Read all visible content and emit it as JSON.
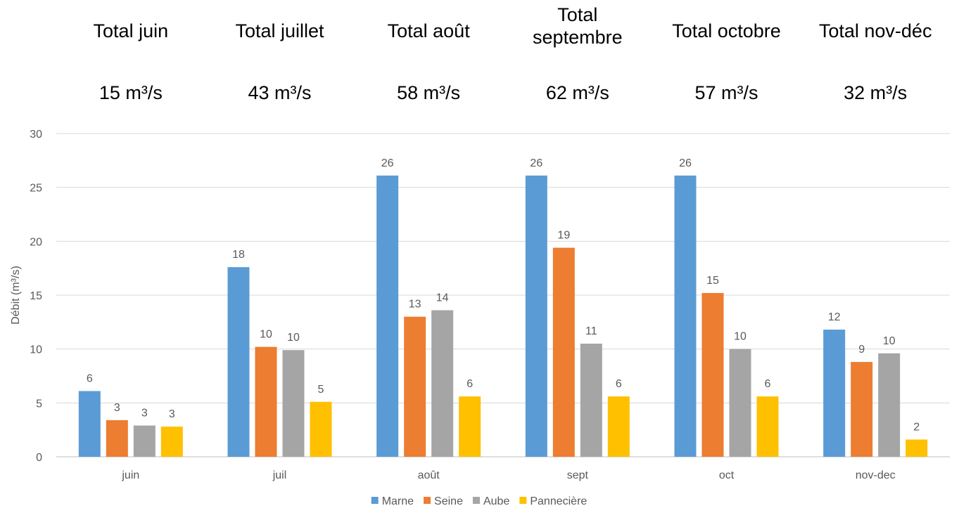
{
  "totals": [
    {
      "lines": [
        "Total juin"
      ],
      "value_text": "15 m³/s"
    },
    {
      "lines": [
        "Total juillet"
      ],
      "value_text": "43 m³/s"
    },
    {
      "lines": [
        "Total août"
      ],
      "value_text": "58 m³/s"
    },
    {
      "lines": [
        "Total",
        "septembre"
      ],
      "value_text": "62 m³/s"
    },
    {
      "lines": [
        "Total octobre"
      ],
      "value_text": "57 m³/s"
    },
    {
      "lines": [
        "Total nov-déc"
      ],
      "value_text": "32 m³/s"
    }
  ],
  "chart_data": {
    "type": "bar",
    "title": "",
    "xlabel": "",
    "ylabel": "Débit (m³/s)",
    "ylim": [
      0,
      30
    ],
    "yticks": [
      0,
      5,
      10,
      15,
      20,
      25,
      30
    ],
    "grid": true,
    "legend_position": "bottom",
    "categories": [
      "juin",
      "juil",
      "août",
      "sept",
      "oct",
      "nov-dec"
    ],
    "series": [
      {
        "name": "Marne",
        "color": "#5b9bd5",
        "values": [
          6.1,
          17.6,
          26.1,
          26.1,
          26.1,
          11.8
        ],
        "labels": [
          "6",
          "18",
          "26",
          "26",
          "26",
          "12"
        ]
      },
      {
        "name": "Seine",
        "color": "#ed7d31",
        "values": [
          3.4,
          10.2,
          13.0,
          19.4,
          15.2,
          8.8
        ],
        "labels": [
          "3",
          "10",
          "13",
          "19",
          "15",
          "9"
        ]
      },
      {
        "name": "Aube",
        "color": "#a5a5a5",
        "values": [
          2.9,
          9.9,
          13.6,
          10.5,
          10.0,
          9.6
        ],
        "labels": [
          "3",
          "10",
          "14",
          "11",
          "10",
          "10"
        ]
      },
      {
        "name": "Pannecière",
        "color": "#ffc000",
        "values": [
          2.8,
          5.1,
          5.6,
          5.6,
          5.6,
          1.6
        ],
        "labels": [
          "3",
          "5",
          "6",
          "6",
          "6",
          "2"
        ]
      }
    ]
  }
}
